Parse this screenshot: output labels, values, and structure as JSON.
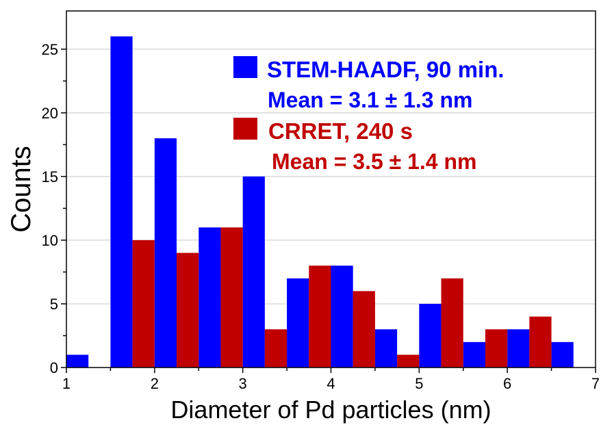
{
  "chart_data": {
    "type": "bar",
    "xlabel": "Diameter of Pd particles (nm)",
    "ylabel": "Counts",
    "xlim": [
      1,
      7
    ],
    "ylim": [
      0,
      28
    ],
    "x_ticks": [
      1,
      2,
      3,
      4,
      5,
      6,
      7
    ],
    "y_ticks": [
      0,
      5,
      10,
      15,
      20,
      25
    ],
    "grid": "horizontal",
    "legend_position": "top-right",
    "bin_width": 0.5,
    "series": [
      {
        "name": "STEM-HAADF, 90 min.",
        "annotation": "Mean = 3.1 ± 1.3 nm",
        "color": "#0000ff",
        "bins": [
          1.0,
          1.5,
          2.0,
          2.5,
          3.0,
          3.5,
          4.0,
          4.5,
          5.0,
          5.5,
          6.0,
          6.5
        ],
        "values": [
          1,
          26,
          18,
          11,
          15,
          7,
          8,
          3,
          5,
          2,
          3,
          2
        ]
      },
      {
        "name": "CRRET, 240 s",
        "annotation": "Mean = 3.5 ± 1.4 nm",
        "color": "#c00000",
        "bins": [
          1.5,
          2.0,
          2.5,
          3.0,
          3.5,
          4.0,
          4.5,
          5.0,
          5.5,
          6.0
        ],
        "values": [
          10,
          9,
          11,
          3,
          8,
          6,
          1,
          7,
          3,
          4
        ]
      }
    ]
  }
}
